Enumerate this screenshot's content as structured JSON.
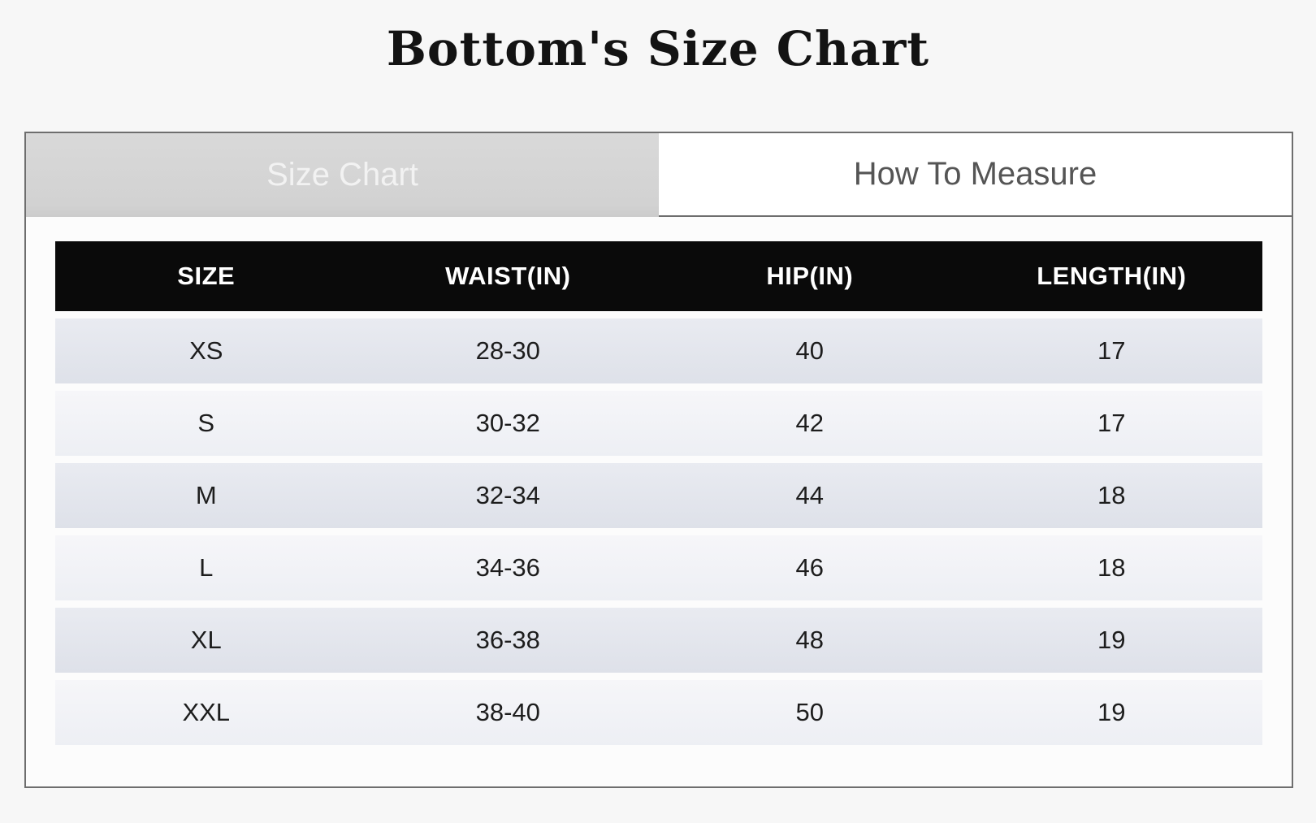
{
  "page": {
    "title": "Bottom's Size Chart"
  },
  "tabs": {
    "size_chart": {
      "label": "Size Chart",
      "active": true
    },
    "how_to_measure": {
      "label": "How To Measure",
      "active": false
    }
  },
  "size_table": {
    "columns": [
      "SIZE",
      "WAIST(IN)",
      "HIP(IN)",
      "LENGTH(IN)"
    ],
    "rows": [
      [
        "XS",
        "28-30",
        "40",
        "17"
      ],
      [
        "S",
        "30-32",
        "42",
        "17"
      ],
      [
        "M",
        "32-34",
        "44",
        "18"
      ],
      [
        "L",
        "34-36",
        "46",
        "18"
      ],
      [
        "XL",
        "36-38",
        "48",
        "19"
      ],
      [
        "XXL",
        "38-40",
        "50",
        "19"
      ]
    ]
  },
  "colors": {
    "page_bg": "#f7f7f7",
    "panel_bg": "#fcfcfc",
    "panel_border": "#6e6e6e",
    "tab_active_bg": "#d4d4d4",
    "tab_active_text": "#f2f2f2",
    "tab_inactive_bg": "#ffffff",
    "tab_inactive_text": "#555555",
    "header_bg": "#0a0a0a",
    "header_text": "#ffffff",
    "row_odd_bg": "#e2e5ec",
    "row_even_bg": "#f1f2f6",
    "cell_text": "#1d1d1d"
  }
}
